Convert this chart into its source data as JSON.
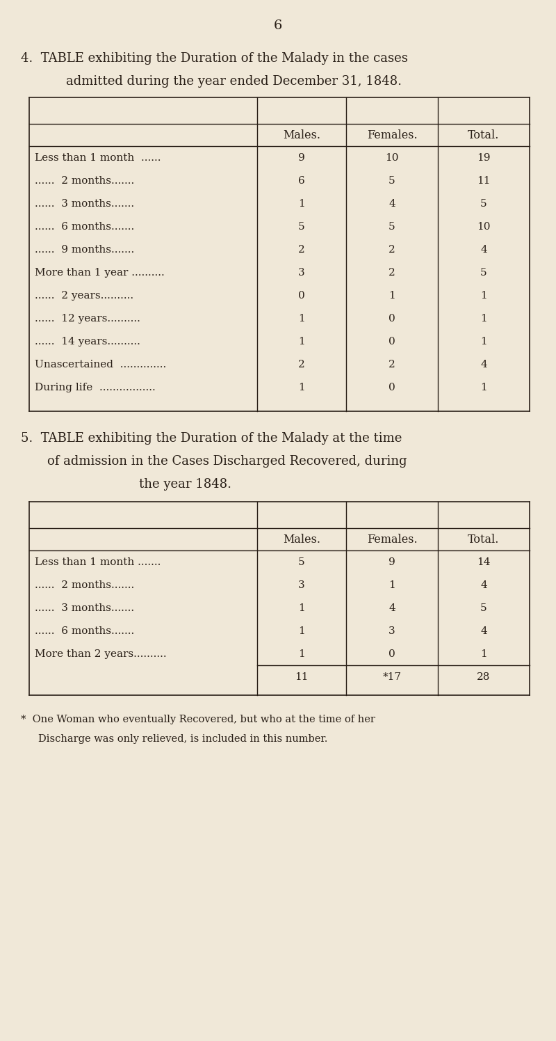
{
  "bg_color": "#f0e8d8",
  "text_color": "#2a2018",
  "page_number": "6",
  "table4": {
    "title_line1": "4.  TABLE exhibiting the Duration of the Malady in the cases",
    "title_line2": "admitted during the year ended December 31, 1848.",
    "headers": [
      "Males.",
      "Females.",
      "Total."
    ],
    "rows": [
      [
        "Less than 1 month  ......",
        "9",
        "10",
        "19"
      ],
      [
        "......  2 months.......",
        "6",
        "5",
        "11"
      ],
      [
        "......  3 months.......",
        "1",
        "4",
        "5"
      ],
      [
        "......  6 months.......",
        "5",
        "5",
        "10"
      ],
      [
        "......  9 months.......",
        "2",
        "2",
        "4"
      ],
      [
        "More than 1 year ..........",
        "3",
        "2",
        "5"
      ],
      [
        "......  2 years..........",
        "0",
        "1",
        "1"
      ],
      [
        "......  12 years..........",
        "1",
        "0",
        "1"
      ],
      [
        "......  14 years..........",
        "1",
        "0",
        "1"
      ],
      [
        "Unascertained  ..............",
        "2",
        "2",
        "4"
      ],
      [
        "During life  .................",
        "1",
        "0",
        "1"
      ]
    ]
  },
  "table5": {
    "title_line1": "5.  TABLE exhibiting the Duration of the Malady at the time",
    "title_line2": "of admission in the Cases Discharged Recovered, during",
    "title_line3": "the year 1848.",
    "headers": [
      "Males.",
      "Females.",
      "Total."
    ],
    "rows": [
      [
        "Less than 1 month .......",
        "5",
        "9",
        "14"
      ],
      [
        "......  2 months.......",
        "3",
        "1",
        "4"
      ],
      [
        "......  3 months.......",
        "1",
        "4",
        "5"
      ],
      [
        "......  6 months.......",
        "1",
        "3",
        "4"
      ],
      [
        "More than 2 years..........",
        "1",
        "0",
        "1"
      ]
    ],
    "totals": [
      "11",
      "*17",
      "28"
    ],
    "footnote_line1": "*  One Woman who eventually Recovered, but who at the time of her",
    "footnote_line2": "Discharge was only relieved, is included in this number."
  }
}
